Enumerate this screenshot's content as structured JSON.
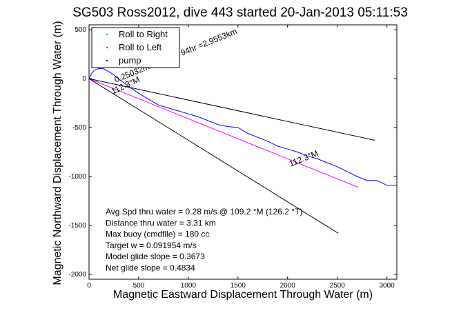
{
  "chart_data": {
    "type": "line",
    "title": "SG503 Ross2012, dive 443 started 20-Jan-2013 05:11:53",
    "xlabel": "Magnetic Eastward Displacement Through Water (m)",
    "ylabel": "Magnetic Northward Displacement Through Water (m)",
    "xlim": [
      0,
      3100
    ],
    "ylim": [
      -2050,
      550
    ],
    "xticks": [
      0,
      500,
      1000,
      1500,
      2000,
      2500,
      3000
    ],
    "yticks": [
      -2000,
      -1500,
      -1000,
      -500,
      0,
      500
    ],
    "grid": false,
    "legend": {
      "placement": "top-left",
      "entries": [
        {
          "label": "Roll to Right",
          "color": "#00cc00",
          "marker": "."
        },
        {
          "label": "Roll to Left",
          "color": "#ff0000",
          "marker": "."
        },
        {
          "label": "pump",
          "color": "#000000",
          "marker": "."
        }
      ]
    },
    "series": [
      {
        "color": "#0000ff",
        "x": [
          0,
          30,
          60,
          100,
          150,
          200,
          250,
          280,
          320,
          400,
          500,
          600,
          700,
          800,
          900,
          1000,
          1100,
          1200,
          1300,
          1400,
          1500,
          1600,
          1700,
          1800,
          1900,
          2000,
          2100,
          2200,
          2300,
          2400,
          2500,
          2600,
          2700,
          2800,
          2900,
          3000,
          3100
        ],
        "y": [
          0,
          60,
          90,
          105,
          100,
          70,
          40,
          10,
          -20,
          -80,
          -150,
          -210,
          -270,
          -300,
          -330,
          -360,
          -390,
          -430,
          -470,
          -490,
          -500,
          -560,
          -600,
          -640,
          -690,
          -720,
          -750,
          -790,
          -820,
          -860,
          -900,
          -950,
          -1000,
          -1040,
          -1040,
          -1090,
          -1090
        ]
      },
      {
        "color": "#ff00ff",
        "x": [
          0,
          2710
        ],
        "y": [
          0,
          -1110
        ]
      },
      {
        "color": "#000000",
        "x": [
          0,
          2880
        ],
        "y": [
          0,
          -630
        ]
      },
      {
        "color": "#000000",
        "x": [
          0,
          2510
        ],
        "y": [
          0,
          -1580
        ]
      }
    ],
    "annotations": [
      {
        "text": "0.25032m/s for3.2794hr =2.9553km",
        "x": 270,
        "y": -40,
        "rotation": -22
      },
      {
        "text": "112.3°M",
        "x": 240,
        "y": -160,
        "rotation": -25
      },
      {
        "text": "112.3°M",
        "x": 2030,
        "y": -900,
        "rotation": -22
      }
    ],
    "stats": [
      "Avg Spd thru water =  0.28 m/s @ 109.2   °M (126.2 °T)",
      "Distance thru water =  3.31 km",
      "Max buoy (cmdfile) = 180 cc",
      "Target w = 0.091954 m/s",
      "Model glide slope = 0.3673",
      "Net glide slope = 0.4834"
    ]
  }
}
